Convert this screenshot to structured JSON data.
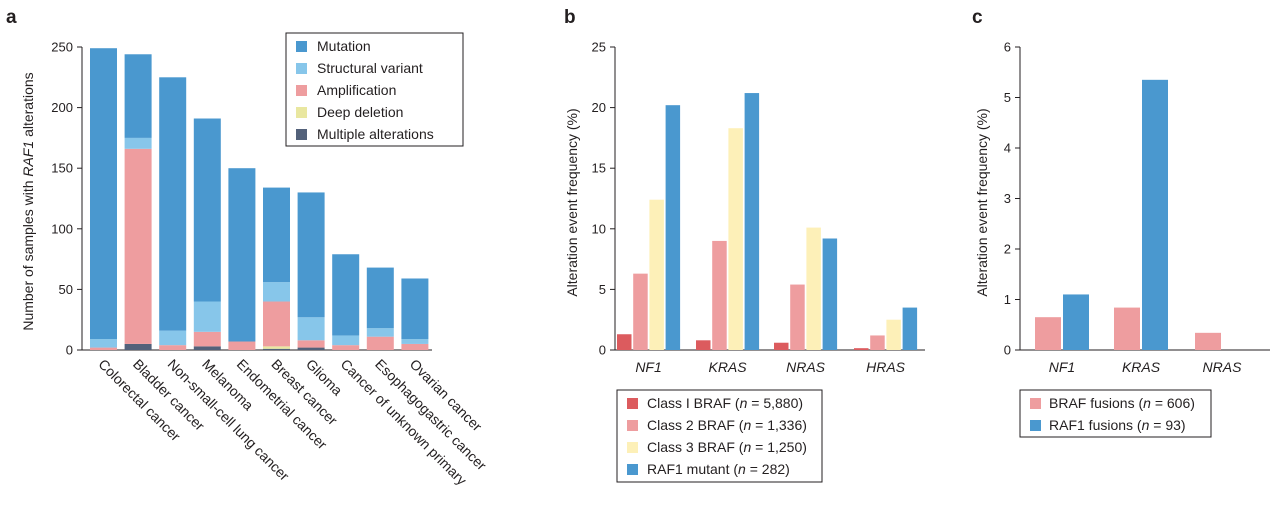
{
  "colors": {
    "mutation": "#4a98cf",
    "structural_variant": "#87c6ea",
    "amplification": "#ee9d9f",
    "deep_deletion": "#e9e7a0",
    "multiple_alterations": "#53617a",
    "class1": "#dc5b5e",
    "class2": "#ee9d9f",
    "class3": "#fdf0b8",
    "raf1": "#4a98cf",
    "axis": "#231f20"
  },
  "chart_data": [
    {
      "panel": "a",
      "type": "bar",
      "stacked": true,
      "ylabel_parts": [
        "Number of samples with ",
        "RAF1",
        " alterations"
      ],
      "ylim": [
        0,
        250
      ],
      "yticks": [
        0,
        50,
        100,
        150,
        200,
        250
      ],
      "legend_position": "top-right",
      "categories": [
        "Colorectal cancer",
        "Bladder cancer",
        "Non-small-cell lung cancer",
        "Melanoma",
        "Endometrial cancer",
        "Breast cancer",
        "Glioma",
        "Cancer of unknown primary",
        "Esophagogastric cancer",
        "Ovarian cancer"
      ],
      "series": [
        {
          "key": "multiple_alterations",
          "name": "Multiple alterations",
          "values": [
            0,
            5,
            0,
            3,
            0,
            1,
            2,
            0,
            0,
            0
          ]
        },
        {
          "key": "deep_deletion",
          "name": "Deep deletion",
          "values": [
            0,
            0,
            0,
            0,
            0,
            2,
            0,
            0,
            0,
            0
          ]
        },
        {
          "key": "amplification",
          "name": "Amplification",
          "values": [
            2,
            161,
            4,
            12,
            7,
            37,
            6,
            4,
            11,
            5
          ]
        },
        {
          "key": "structural_variant",
          "name": "Structural variant",
          "values": [
            7,
            9,
            12,
            25,
            0,
            16,
            19,
            8,
            7,
            4
          ]
        },
        {
          "key": "mutation",
          "name": "Mutation",
          "values": [
            240,
            69,
            209,
            151,
            143,
            78,
            103,
            67,
            50,
            50
          ]
        }
      ],
      "legend_order": [
        "mutation",
        "structural_variant",
        "amplification",
        "deep_deletion",
        "multiple_alterations"
      ]
    },
    {
      "panel": "b",
      "type": "bar",
      "stacked": false,
      "ylabel": "Alteration event frequency (%)",
      "ylim": [
        0,
        25
      ],
      "yticks": [
        0,
        5,
        10,
        15,
        20,
        25
      ],
      "categories": [
        "NF1",
        "KRAS",
        "NRAS",
        "HRAS"
      ],
      "series": [
        {
          "key": "class1",
          "name": "Class I BRAF",
          "n": "5,880",
          "values": [
            1.3,
            0.8,
            0.6,
            0.15
          ]
        },
        {
          "key": "class2",
          "name": "Class 2 BRAF",
          "n": "1,336",
          "values": [
            6.3,
            9.0,
            5.4,
            1.2
          ]
        },
        {
          "key": "class3",
          "name": "Class 3 BRAF",
          "n": "1,250",
          "values": [
            12.4,
            18.3,
            10.1,
            2.5
          ]
        },
        {
          "key": "raf1",
          "name": "RAF1 mutant",
          "n": "282",
          "values": [
            20.2,
            21.2,
            9.2,
            3.5
          ]
        }
      ]
    },
    {
      "panel": "c",
      "type": "bar",
      "stacked": false,
      "ylabel": "Alteration event frequency (%)",
      "ylim": [
        0,
        6
      ],
      "yticks": [
        0,
        1,
        2,
        3,
        4,
        5,
        6
      ],
      "categories": [
        "NF1",
        "KRAS",
        "NRAS"
      ],
      "series": [
        {
          "key": "class2",
          "name": "BRAF fusions",
          "n": "606",
          "values": [
            0.65,
            0.84,
            0.34
          ]
        },
        {
          "key": "raf1",
          "name": "RAF1 fusions",
          "n": "93",
          "values": [
            1.1,
            5.35,
            0
          ]
        }
      ]
    }
  ]
}
